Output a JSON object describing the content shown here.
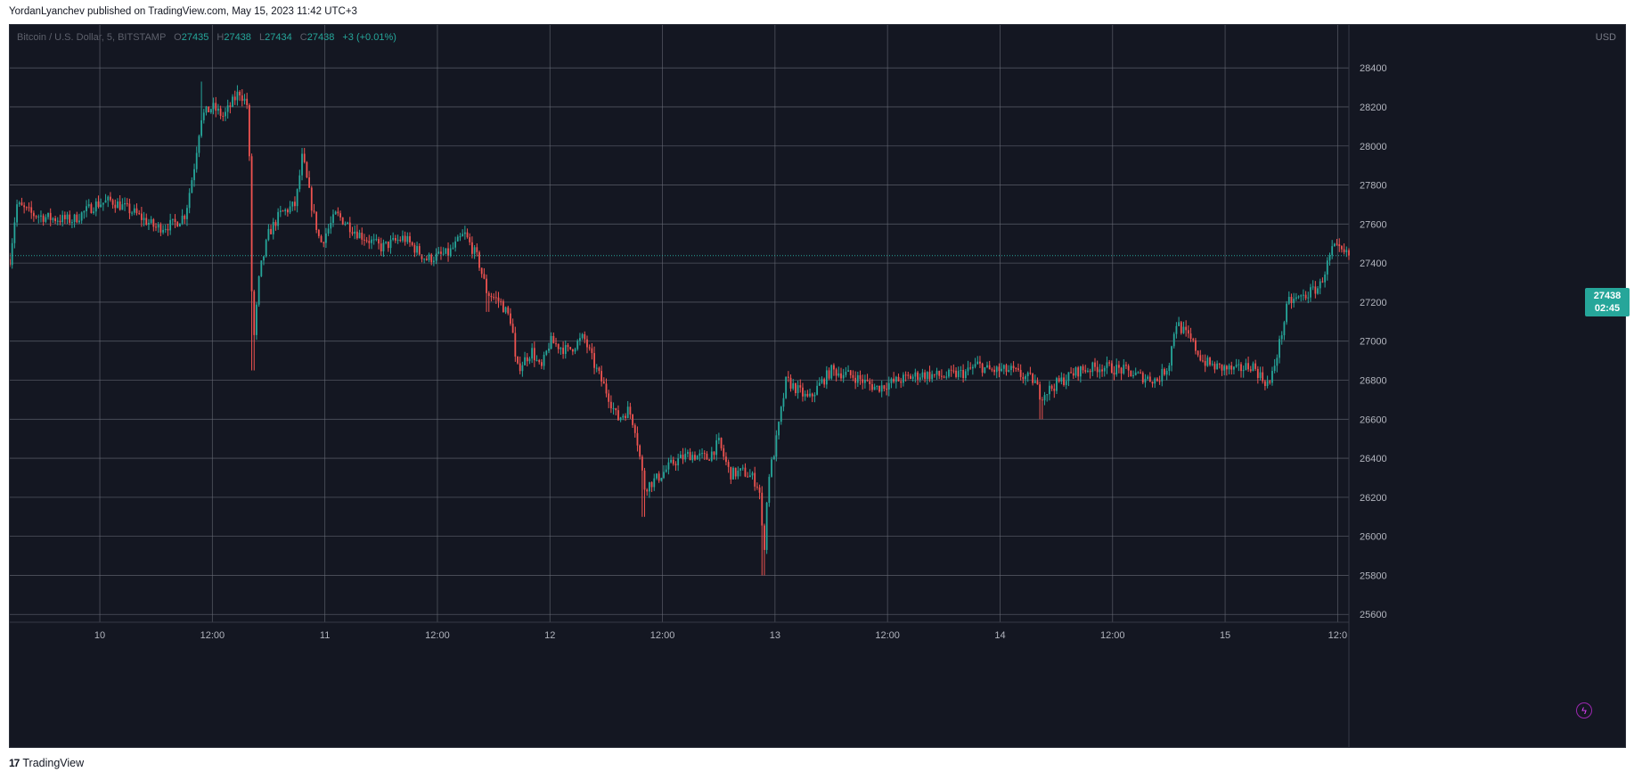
{
  "header": {
    "publish_info": "YordanLyanchev published on TradingView.com, May 15, 2023 11:42 UTC+3"
  },
  "symbol": {
    "name": "Bitcoin / U.S. Dollar, 5, BITSTAMP",
    "o_label": "O",
    "o_value": "27435",
    "h_label": "H",
    "h_value": "27438",
    "l_label": "L",
    "l_value": "27434",
    "c_label": "C",
    "c_value": "27438",
    "change": "+3 (+0.01%)"
  },
  "price_axis": {
    "currency": "USD"
  },
  "last_price": {
    "price": "27438",
    "countdown": "02:45"
  },
  "footer": {
    "logo_mark": "17",
    "logo_text": "TradingView"
  },
  "colors": {
    "up": "#26a69a",
    "down": "#ef5350",
    "background": "#141722",
    "grid": "#6a6d78"
  },
  "icons": {
    "alert": "lightning-icon"
  },
  "chart_data": {
    "type": "candlestick",
    "title": "Bitcoin / U.S. Dollar, 5, BITSTAMP",
    "ylabel": "USD",
    "ylim": [
      25560,
      28620
    ],
    "y_ticks": [
      25600,
      25800,
      26000,
      26200,
      26400,
      26600,
      26800,
      27000,
      27200,
      27400,
      27600,
      27800,
      28000,
      28200,
      28400
    ],
    "x_ticks": [
      "10",
      "12:00",
      "11",
      "12:00",
      "12",
      "12:00",
      "13",
      "12:00",
      "14",
      "12:00",
      "15",
      "12:0"
    ],
    "x_range_days": [
      9.6,
      15.55
    ],
    "current_price": 27438,
    "price_path": [
      {
        "day": 9.6,
        "price": 27420
      },
      {
        "day": 9.63,
        "price": 27700
      },
      {
        "day": 9.7,
        "price": 27650
      },
      {
        "day": 9.78,
        "price": 27630
      },
      {
        "day": 9.88,
        "price": 27620
      },
      {
        "day": 9.98,
        "price": 27700
      },
      {
        "day": 10.05,
        "price": 27720
      },
      {
        "day": 10.15,
        "price": 27660
      },
      {
        "day": 10.25,
        "price": 27580
      },
      {
        "day": 10.33,
        "price": 27600
      },
      {
        "day": 10.38,
        "price": 27650
      },
      {
        "day": 10.42,
        "price": 27900
      },
      {
        "day": 10.45,
        "price": 28150
      },
      {
        "day": 10.5,
        "price": 28200
      },
      {
        "day": 10.55,
        "price": 28150
      },
      {
        "day": 10.62,
        "price": 28280
      },
      {
        "day": 10.66,
        "price": 28200
      },
      {
        "day": 10.68,
        "price": 26950
      },
      {
        "day": 10.71,
        "price": 27350
      },
      {
        "day": 10.75,
        "price": 27550
      },
      {
        "day": 10.8,
        "price": 27650
      },
      {
        "day": 10.87,
        "price": 27700
      },
      {
        "day": 10.9,
        "price": 27950
      },
      {
        "day": 10.94,
        "price": 27700
      },
      {
        "day": 10.98,
        "price": 27500
      },
      {
        "day": 11.05,
        "price": 27650
      },
      {
        "day": 11.15,
        "price": 27550
      },
      {
        "day": 11.25,
        "price": 27480
      },
      {
        "day": 11.35,
        "price": 27530
      },
      {
        "day": 11.45,
        "price": 27420
      },
      {
        "day": 11.55,
        "price": 27450
      },
      {
        "day": 11.62,
        "price": 27550
      },
      {
        "day": 11.68,
        "price": 27420
      },
      {
        "day": 11.72,
        "price": 27250
      },
      {
        "day": 11.78,
        "price": 27200
      },
      {
        "day": 11.83,
        "price": 27100
      },
      {
        "day": 11.85,
        "price": 26850
      },
      {
        "day": 11.92,
        "price": 26950
      },
      {
        "day": 11.96,
        "price": 26850
      },
      {
        "day": 12.0,
        "price": 27000
      },
      {
        "day": 12.08,
        "price": 26950
      },
      {
        "day": 12.15,
        "price": 27020
      },
      {
        "day": 12.2,
        "price": 26870
      },
      {
        "day": 12.26,
        "price": 26720
      },
      {
        "day": 12.3,
        "price": 26600
      },
      {
        "day": 12.35,
        "price": 26650
      },
      {
        "day": 12.38,
        "price": 26550
      },
      {
        "day": 12.42,
        "price": 26250
      },
      {
        "day": 12.48,
        "price": 26300
      },
      {
        "day": 12.55,
        "price": 26380
      },
      {
        "day": 12.62,
        "price": 26420
      },
      {
        "day": 12.7,
        "price": 26400
      },
      {
        "day": 12.75,
        "price": 26480
      },
      {
        "day": 12.8,
        "price": 26320
      },
      {
        "day": 12.86,
        "price": 26330
      },
      {
        "day": 12.9,
        "price": 26300
      },
      {
        "day": 12.93,
        "price": 26250
      },
      {
        "day": 12.95,
        "price": 25900
      },
      {
        "day": 12.97,
        "price": 26300
      },
      {
        "day": 13.0,
        "price": 26450
      },
      {
        "day": 13.05,
        "price": 26800
      },
      {
        "day": 13.1,
        "price": 26750
      },
      {
        "day": 13.15,
        "price": 26700
      },
      {
        "day": 13.2,
        "price": 26780
      },
      {
        "day": 13.25,
        "price": 26850
      },
      {
        "day": 13.35,
        "price": 26820
      },
      {
        "day": 13.45,
        "price": 26760
      },
      {
        "day": 13.55,
        "price": 26800
      },
      {
        "day": 13.65,
        "price": 26830
      },
      {
        "day": 13.75,
        "price": 26820
      },
      {
        "day": 13.85,
        "price": 26840
      },
      {
        "day": 13.9,
        "price": 26880
      },
      {
        "day": 13.95,
        "price": 26850
      },
      {
        "day": 14.05,
        "price": 26850
      },
      {
        "day": 14.1,
        "price": 26820
      },
      {
        "day": 14.15,
        "price": 26800
      },
      {
        "day": 14.18,
        "price": 26720
      },
      {
        "day": 14.25,
        "price": 26780
      },
      {
        "day": 14.35,
        "price": 26850
      },
      {
        "day": 14.45,
        "price": 26870
      },
      {
        "day": 14.55,
        "price": 26850
      },
      {
        "day": 14.62,
        "price": 26820
      },
      {
        "day": 14.7,
        "price": 26800
      },
      {
        "day": 14.75,
        "price": 26880
      },
      {
        "day": 14.78,
        "price": 27100
      },
      {
        "day": 14.85,
        "price": 27000
      },
      {
        "day": 14.9,
        "price": 26900
      },
      {
        "day": 14.95,
        "price": 26870
      },
      {
        "day": 15.05,
        "price": 26850
      },
      {
        "day": 15.12,
        "price": 26880
      },
      {
        "day": 15.17,
        "price": 26800
      },
      {
        "day": 15.2,
        "price": 26780
      },
      {
        "day": 15.24,
        "price": 26980
      },
      {
        "day": 15.28,
        "price": 27200
      },
      {
        "day": 15.35,
        "price": 27230
      },
      {
        "day": 15.42,
        "price": 27280
      },
      {
        "day": 15.48,
        "price": 27480
      },
      {
        "day": 15.52,
        "price": 27450
      },
      {
        "day": 15.55,
        "price": 27438
      }
    ]
  }
}
